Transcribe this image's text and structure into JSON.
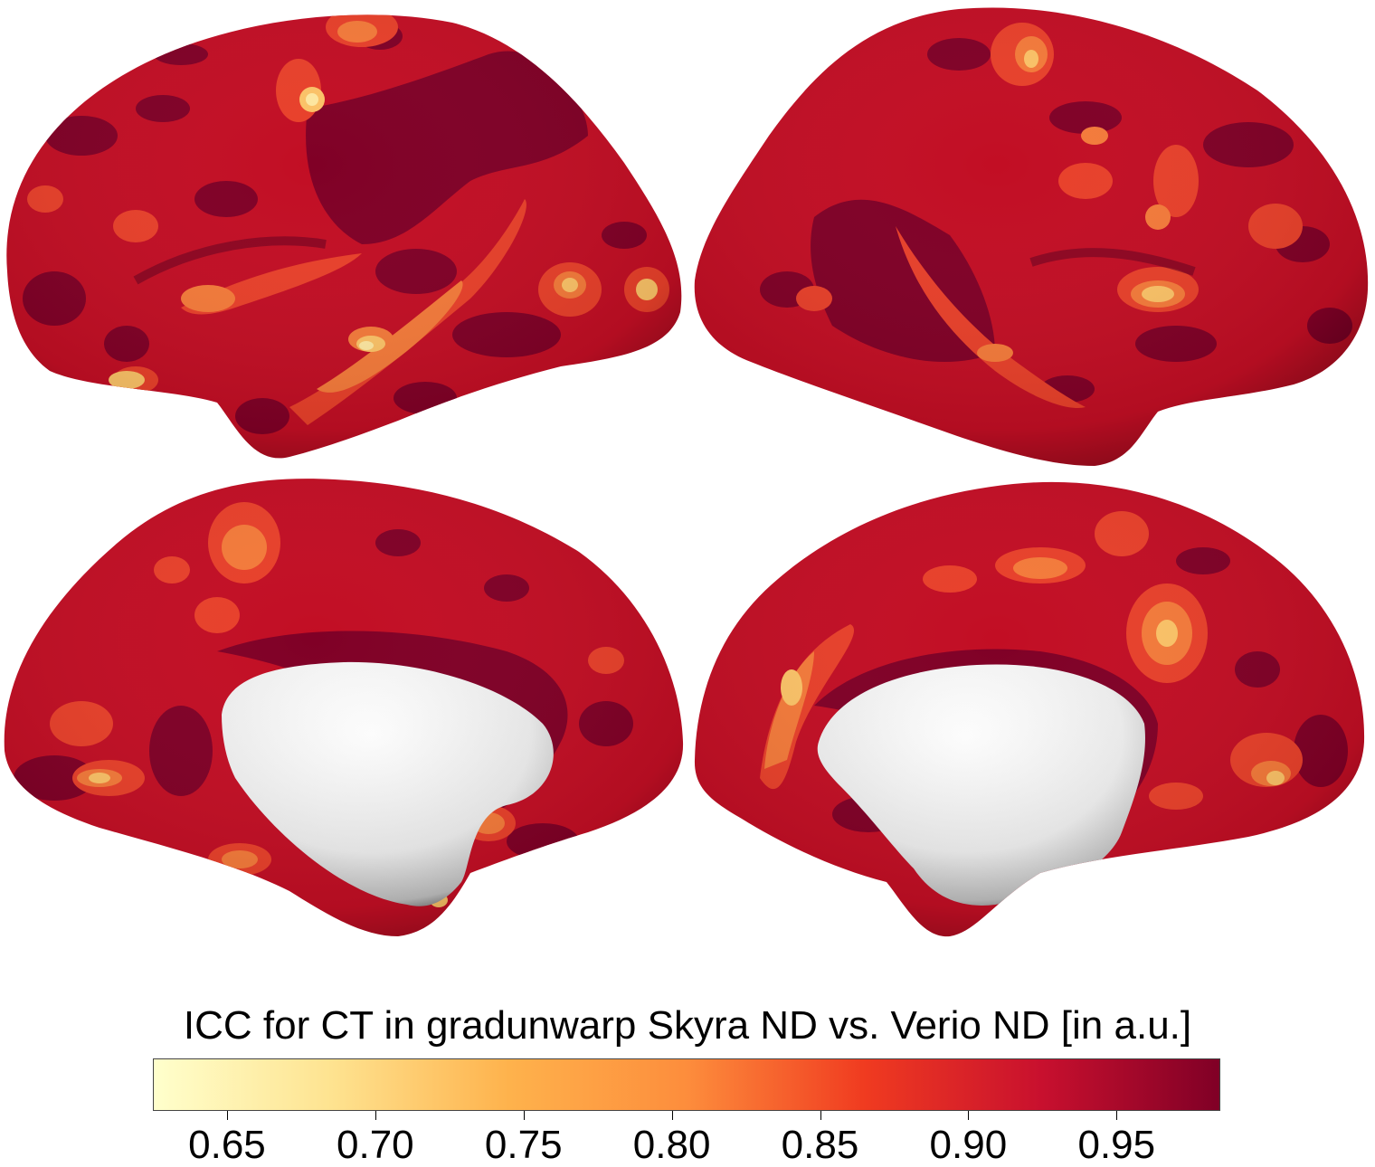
{
  "colorbar": {
    "title": "ICC for CT in gradunwarp Skyra ND vs. Verio ND [in a.u.]",
    "min": 0.625,
    "max": 0.985,
    "stops": [
      "#ffffcc",
      "#fee390",
      "#feb24c",
      "#fd8d3c",
      "#f03b20",
      "#c8102e",
      "#800026"
    ],
    "ticks": [
      "0.65",
      "0.70",
      "0.75",
      "0.80",
      "0.85",
      "0.90",
      "0.95"
    ],
    "tick_values": [
      0.65,
      0.7,
      0.75,
      0.8,
      0.85,
      0.9,
      0.95
    ]
  },
  "views": [
    {
      "name": "left-lateral"
    },
    {
      "name": "right-lateral"
    },
    {
      "name": "left-medial"
    },
    {
      "name": "right-medial"
    }
  ],
  "colors": {
    "dark": "#800026",
    "base": "#c20e24",
    "mid": "#e8402a",
    "orange": "#f47a3a",
    "light": "#fbc267",
    "pale": "#fde7a0",
    "medial_wall": "#f2f2f2"
  }
}
